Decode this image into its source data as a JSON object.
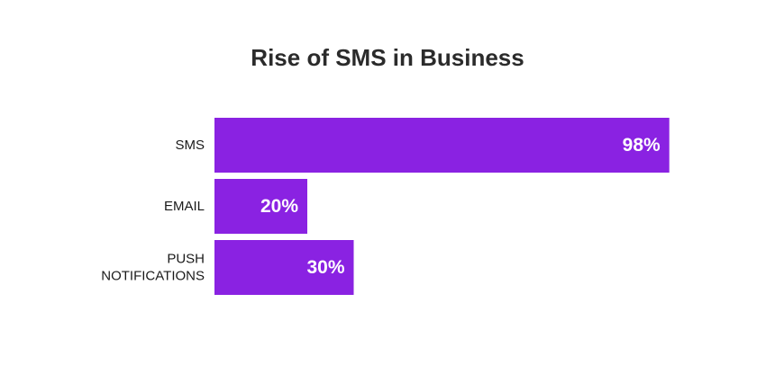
{
  "chart_data": {
    "type": "bar",
    "orientation": "horizontal",
    "title": "Rise of SMS in Business",
    "categories": [
      {
        "lines": [
          "SMS"
        ]
      },
      {
        "lines": [
          "EMAIL"
        ]
      },
      {
        "lines": [
          "PUSH",
          "NOTIFICATIONS"
        ]
      }
    ],
    "values": [
      98,
      20,
      30
    ],
    "value_labels": [
      "98%",
      "20%",
      "30%"
    ],
    "xlim": [
      0,
      100
    ],
    "bar_color": "#8a22e2",
    "label_color": "#ffffff",
    "text_color": "#1a1a1a",
    "title_color": "#2b2b2b",
    "grid": false,
    "legend": "none"
  }
}
